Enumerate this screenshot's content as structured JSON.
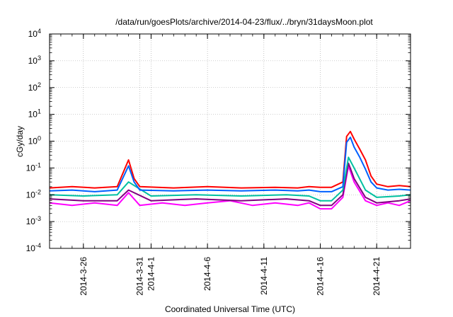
{
  "chart_data": {
    "type": "line",
    "title": "/data/run/goesPlots/archive/2014-04-23/flux/../bryn/31daysMoon.plot",
    "xlabel": "Coordinated Universal Time (UTC)",
    "ylabel": "cGy/day",
    "yscale": "log",
    "ylim": [
      0.0001,
      10000
    ],
    "xlim": [
      "2014-03-23",
      "2014-04-24"
    ],
    "grid": true,
    "x_ticks": [
      {
        "label": "2014-3-26",
        "x": "2014-03-26"
      },
      {
        "label": "2014-3-31",
        "x": "2014-03-31"
      },
      {
        "label": "2014-4-1",
        "x": "2014-04-01"
      },
      {
        "label": "2014-4-6",
        "x": "2014-04-06"
      },
      {
        "label": "2014-4-11",
        "x": "2014-04-11"
      },
      {
        "label": "2014-4-16",
        "x": "2014-04-16"
      },
      {
        "label": "2014-4-21",
        "x": "2014-04-21"
      }
    ],
    "y_ticks": [
      {
        "value": 0.0001,
        "base": "10",
        "exp": "-4"
      },
      {
        "value": 0.001,
        "base": "10",
        "exp": "-3"
      },
      {
        "value": 0.01,
        "base": "10",
        "exp": "-2"
      },
      {
        "value": 0.1,
        "base": "10",
        "exp": "-1"
      },
      {
        "value": 1,
        "base": "10",
        "exp": "0"
      },
      {
        "value": 10,
        "base": "10",
        "exp": "1"
      },
      {
        "value": 100,
        "base": "10",
        "exp": "2"
      },
      {
        "value": 1000,
        "base": "10",
        "exp": "3"
      },
      {
        "value": 10000,
        "base": "10",
        "exp": "4"
      }
    ],
    "series": [
      {
        "color": "#ff00ff",
        "values": [
          [
            "2014-03-23",
            0.005
          ],
          [
            "2014-03-25",
            0.004
          ],
          [
            "2014-03-27",
            0.005
          ],
          [
            "2014-03-29",
            0.004
          ],
          [
            "2014-03-30",
            0.012
          ],
          [
            "2014-03-31",
            0.004
          ],
          [
            "2014-04-02",
            0.005
          ],
          [
            "2014-04-04",
            0.004
          ],
          [
            "2014-04-06",
            0.005
          ],
          [
            "2014-04-08",
            0.006
          ],
          [
            "2014-04-10",
            0.004
          ],
          [
            "2014-04-12",
            0.005
          ],
          [
            "2014-04-14",
            0.004
          ],
          [
            "2014-04-15",
            0.005
          ],
          [
            "2014-04-16",
            0.003
          ],
          [
            "2014-04-17",
            0.003
          ],
          [
            "2014-04-18",
            0.008
          ],
          [
            "2014-04-18T12",
            0.12
          ],
          [
            "2014-04-19",
            0.03
          ],
          [
            "2014-04-20",
            0.006
          ],
          [
            "2014-04-21",
            0.004
          ],
          [
            "2014-04-22",
            0.005
          ],
          [
            "2014-04-23",
            0.004
          ],
          [
            "2014-04-24",
            0.006
          ]
        ]
      },
      {
        "color": "#800080",
        "values": [
          [
            "2014-03-23",
            0.007
          ],
          [
            "2014-03-26",
            0.006
          ],
          [
            "2014-03-29",
            0.006
          ],
          [
            "2014-03-30",
            0.015
          ],
          [
            "2014-04-01",
            0.006
          ],
          [
            "2014-04-05",
            0.007
          ],
          [
            "2014-04-09",
            0.006
          ],
          [
            "2014-04-13",
            0.007
          ],
          [
            "2014-04-15",
            0.006
          ],
          [
            "2014-04-16",
            0.004
          ],
          [
            "2014-04-17",
            0.004
          ],
          [
            "2014-04-18",
            0.01
          ],
          [
            "2014-04-18T12",
            0.15
          ],
          [
            "2014-04-19",
            0.04
          ],
          [
            "2014-04-20",
            0.008
          ],
          [
            "2014-04-21",
            0.005
          ],
          [
            "2014-04-23",
            0.006
          ],
          [
            "2014-04-24",
            0.007
          ]
        ]
      },
      {
        "color": "#00c0a0",
        "values": [
          [
            "2014-03-23",
            0.01
          ],
          [
            "2014-03-26",
            0.009
          ],
          [
            "2014-03-29",
            0.01
          ],
          [
            "2014-03-30",
            0.03
          ],
          [
            "2014-04-01",
            0.009
          ],
          [
            "2014-04-05",
            0.01
          ],
          [
            "2014-04-09",
            0.009
          ],
          [
            "2014-04-13",
            0.01
          ],
          [
            "2014-04-15",
            0.009
          ],
          [
            "2014-04-16",
            0.006
          ],
          [
            "2014-04-17",
            0.006
          ],
          [
            "2014-04-18",
            0.015
          ],
          [
            "2014-04-18T12",
            0.25
          ],
          [
            "2014-04-19",
            0.1
          ],
          [
            "2014-04-20",
            0.015
          ],
          [
            "2014-04-21",
            0.008
          ],
          [
            "2014-04-23",
            0.009
          ],
          [
            "2014-04-24",
            0.01
          ]
        ]
      },
      {
        "color": "#ff0000",
        "values": [
          [
            "2014-03-23",
            0.018
          ],
          [
            "2014-03-25",
            0.02
          ],
          [
            "2014-03-27",
            0.018
          ],
          [
            "2014-03-29",
            0.02
          ],
          [
            "2014-03-30",
            0.2
          ],
          [
            "2014-03-30T12",
            0.04
          ],
          [
            "2014-03-31",
            0.02
          ],
          [
            "2014-04-03",
            0.018
          ],
          [
            "2014-04-06",
            0.02
          ],
          [
            "2014-04-09",
            0.018
          ],
          [
            "2014-04-12",
            0.019
          ],
          [
            "2014-04-14",
            0.018
          ],
          [
            "2014-04-15",
            0.02
          ],
          [
            "2014-04-16",
            0.019
          ],
          [
            "2014-04-17",
            0.019
          ],
          [
            "2014-04-18",
            0.03
          ],
          [
            "2014-04-18T08",
            1.5
          ],
          [
            "2014-04-18T16",
            2.3
          ],
          [
            "2014-04-19",
            1.2
          ],
          [
            "2014-04-19T12",
            0.5
          ],
          [
            "2014-04-20",
            0.2
          ],
          [
            "2014-04-20T12",
            0.05
          ],
          [
            "2014-04-21",
            0.025
          ],
          [
            "2014-04-22",
            0.02
          ],
          [
            "2014-04-23",
            0.022
          ],
          [
            "2014-04-24",
            0.02
          ]
        ]
      },
      {
        "color": "#0060ff",
        "values": [
          [
            "2014-03-23",
            0.014
          ],
          [
            "2014-03-25",
            0.015
          ],
          [
            "2014-03-27",
            0.013
          ],
          [
            "2014-03-29",
            0.015
          ],
          [
            "2014-03-30",
            0.12
          ],
          [
            "2014-03-30T12",
            0.03
          ],
          [
            "2014-03-31",
            0.015
          ],
          [
            "2014-04-03",
            0.014
          ],
          [
            "2014-04-06",
            0.015
          ],
          [
            "2014-04-09",
            0.014
          ],
          [
            "2014-04-12",
            0.015
          ],
          [
            "2014-04-14",
            0.014
          ],
          [
            "2014-04-15",
            0.015
          ],
          [
            "2014-04-16",
            0.013
          ],
          [
            "2014-04-17",
            0.013
          ],
          [
            "2014-04-18",
            0.02
          ],
          [
            "2014-04-18T08",
            0.9
          ],
          [
            "2014-04-18T16",
            1.4
          ],
          [
            "2014-04-19",
            0.6
          ],
          [
            "2014-04-19T12",
            0.25
          ],
          [
            "2014-04-20",
            0.09
          ],
          [
            "2014-04-20T12",
            0.03
          ],
          [
            "2014-04-21",
            0.018
          ],
          [
            "2014-04-22",
            0.015
          ],
          [
            "2014-04-23",
            0.016
          ],
          [
            "2014-04-24",
            0.015
          ]
        ]
      }
    ]
  }
}
